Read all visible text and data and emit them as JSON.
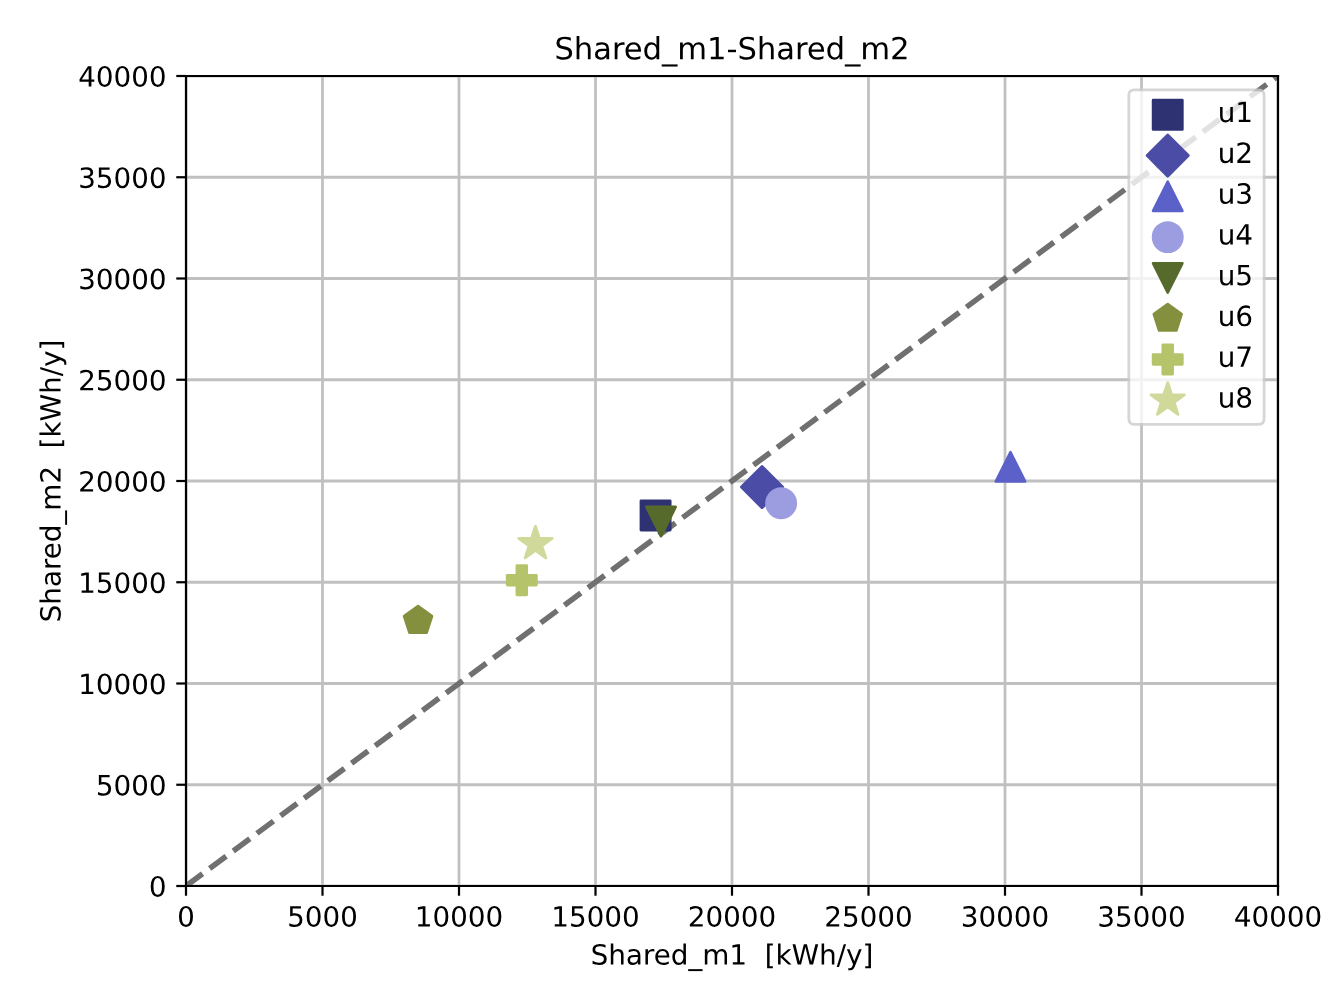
{
  "chart_data": {
    "type": "scatter",
    "title": "Shared_m1-Shared_m2",
    "xlabel": "Shared_m1  [kWh/y]",
    "ylabel": "Shared_m2  [kWh/y]",
    "xlim": [
      0,
      40000
    ],
    "ylim": [
      0,
      40000
    ],
    "xticks": [
      0,
      5000,
      10000,
      15000,
      20000,
      25000,
      30000,
      35000,
      40000
    ],
    "yticks": [
      0,
      5000,
      10000,
      15000,
      20000,
      25000,
      30000,
      35000,
      40000
    ],
    "grid": true,
    "legend": "top right",
    "series": [
      {
        "name": "u1",
        "color": "#2e3272",
        "marker": "square",
        "x": [
          17200
        ],
        "values": [
          18300
        ]
      },
      {
        "name": "u2",
        "color": "#4a4ca6",
        "marker": "diamond",
        "x": [
          21100
        ],
        "values": [
          19700
        ]
      },
      {
        "name": "u3",
        "color": "#5c61c9",
        "marker": "triangle",
        "x": [
          30200
        ],
        "values": [
          20700
        ]
      },
      {
        "name": "u4",
        "color": "#9b9de0",
        "marker": "circle",
        "x": [
          21800
        ],
        "values": [
          18900
        ]
      },
      {
        "name": "u5",
        "color": "#566a2c",
        "marker": "triangle_down",
        "x": [
          17400
        ],
        "values": [
          18000
        ]
      },
      {
        "name": "u6",
        "color": "#85903f",
        "x": [
          8500
        ],
        "values": [
          13100
        ]
      },
      {
        "name": "u7",
        "color": "#b5c46a",
        "marker": "plus",
        "x": [
          12300
        ],
        "values": [
          15100
        ]
      },
      {
        "name": "u8",
        "color": "#d0d99a",
        "marker": "star",
        "x": [
          12800
        ],
        "values": [
          16900
        ]
      },
      {
        "type": "line",
        "color": "#707070",
        "line_style": "dashed",
        "marker": "none",
        "x": [
          0,
          40000
        ],
        "values": [
          0,
          40000
        ]
      }
    ]
  }
}
